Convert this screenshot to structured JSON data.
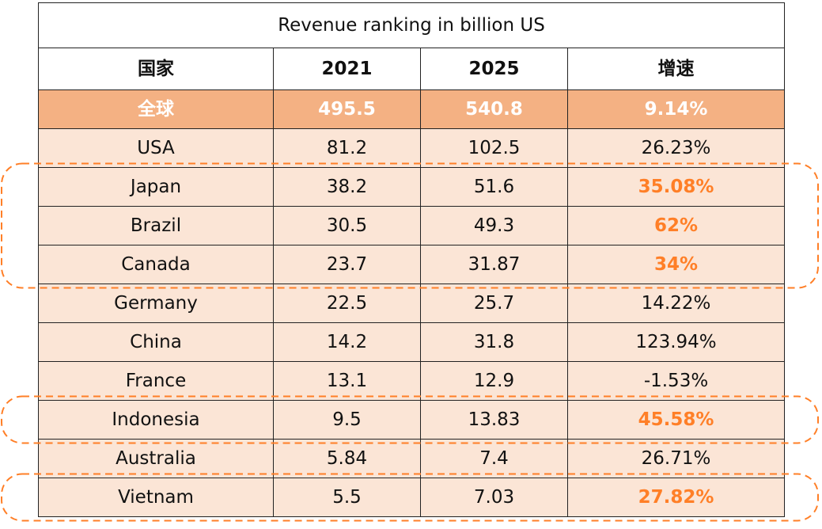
{
  "colors": {
    "total_bg": "#f4b183",
    "row_bg": "#fbe5d6",
    "highlight_text": "#ff7f27",
    "dash": "#ff7f27"
  },
  "chart_data": {
    "type": "table",
    "title": "Revenue ranking in billion US",
    "columns": [
      "国家",
      "2021",
      "2025",
      "增速"
    ],
    "total": {
      "country": "全球",
      "y2021": "495.5",
      "y2025": "540.8",
      "growth": "9.14%"
    },
    "rows": [
      {
        "country": "USA",
        "y2021": "81.2",
        "y2025": "102.5",
        "growth": "26.23%",
        "highlight": false
      },
      {
        "country": "Japan",
        "y2021": "38.2",
        "y2025": "51.6",
        "growth": "35.08%",
        "highlight": true
      },
      {
        "country": "Brazil",
        "y2021": "30.5",
        "y2025": "49.3",
        "growth": "62%",
        "highlight": true
      },
      {
        "country": "Canada",
        "y2021": "23.7",
        "y2025": "31.87",
        "growth": "34%",
        "highlight": true
      },
      {
        "country": "Germany",
        "y2021": "22.5",
        "y2025": "25.7",
        "growth": "14.22%",
        "highlight": false
      },
      {
        "country": "China",
        "y2021": "14.2",
        "y2025": "31.8",
        "growth": "123.94%",
        "highlight": false
      },
      {
        "country": "France",
        "y2021": "13.1",
        "y2025": "12.9",
        "growth": "-1.53%",
        "highlight": false
      },
      {
        "country": "Indonesia",
        "y2021": "9.5",
        "y2025": "13.83",
        "growth": "45.58%",
        "highlight": true
      },
      {
        "country": "Australia",
        "y2021": "5.84",
        "y2025": "7.4",
        "growth": "26.71%",
        "highlight": false
      },
      {
        "country": "Vietnam",
        "y2021": "5.5",
        "y2025": "7.03",
        "growth": "27.82%",
        "highlight": true
      }
    ],
    "highlight_groups": [
      [
        "Japan",
        "Brazil",
        "Canada"
      ],
      [
        "Indonesia"
      ],
      [
        "Vietnam"
      ]
    ]
  }
}
